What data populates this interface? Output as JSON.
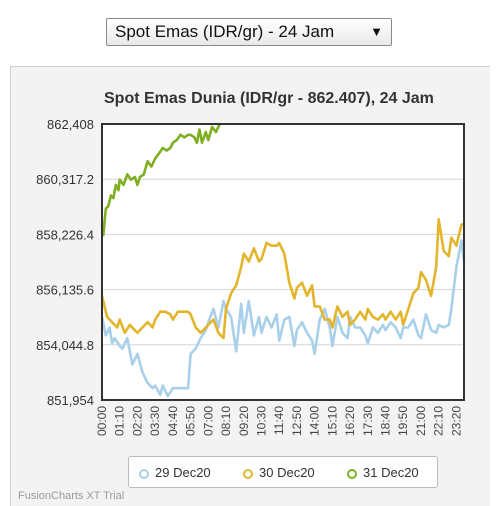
{
  "selector": {
    "value": "Spot Emas (IDR/gr) - 24 Jam"
  },
  "watermark": "FusionCharts XT Trial",
  "colors": {
    "s1": "#a9d0ea",
    "s2": "#e3b52c",
    "s3": "#7faf20"
  },
  "chart_data": {
    "type": "line",
    "title": "Spot Emas Dunia (IDR/gr - 862.407), 24 Jam",
    "xlabel": "",
    "ylabel": "",
    "ylim": [
      851954,
      862408
    ],
    "yticks": [
      "862,408",
      "860,317.2",
      "858,226.4",
      "856,135.6",
      "854,044.8",
      "851,954"
    ],
    "xticks": [
      "00:00",
      "01:10",
      "02:20",
      "03:30",
      "04:40",
      "05:50",
      "07:00",
      "08:10",
      "09:20",
      "10:30",
      "11:40",
      "12:50",
      "14:00",
      "15:10",
      "16:20",
      "17:30",
      "18:40",
      "19:50",
      "21:00",
      "22:10",
      "23:20"
    ],
    "grid": true,
    "legend_position": "bottom",
    "series": [
      {
        "name": "29 Dec20",
        "color": "#a9d0ea",
        "points": [
          [
            "00:00",
            855100
          ],
          [
            "00:15",
            854400
          ],
          [
            "00:30",
            854700
          ],
          [
            "00:40",
            854100
          ],
          [
            "00:50",
            854300
          ],
          [
            "01:10",
            854000
          ],
          [
            "01:20",
            853900
          ],
          [
            "01:40",
            854300
          ],
          [
            "02:00",
            853300
          ],
          [
            "02:20",
            853700
          ],
          [
            "02:40",
            853000
          ],
          [
            "03:00",
            852600
          ],
          [
            "03:20",
            852400
          ],
          [
            "03:30",
            852500
          ],
          [
            "03:50",
            852150
          ],
          [
            "04:00",
            852500
          ],
          [
            "04:20",
            852100
          ],
          [
            "04:40",
            852400
          ],
          [
            "05:00",
            852400
          ],
          [
            "05:20",
            852400
          ],
          [
            "05:40",
            852400
          ],
          [
            "05:50",
            853700
          ],
          [
            "06:10",
            853900
          ],
          [
            "06:30",
            854300
          ],
          [
            "06:50",
            854600
          ],
          [
            "07:00",
            854900
          ],
          [
            "07:20",
            855400
          ],
          [
            "07:40",
            854700
          ],
          [
            "08:00",
            855700
          ],
          [
            "08:10",
            855400
          ],
          [
            "08:30",
            855100
          ],
          [
            "08:50",
            853800
          ],
          [
            "09:10",
            855600
          ],
          [
            "09:20",
            854500
          ],
          [
            "09:40",
            855700
          ],
          [
            "10:00",
            854400
          ],
          [
            "10:20",
            855100
          ],
          [
            "10:30",
            854500
          ],
          [
            "10:50",
            855100
          ],
          [
            "11:10",
            854700
          ],
          [
            "11:30",
            855200
          ],
          [
            "11:40",
            854200
          ],
          [
            "12:00",
            855000
          ],
          [
            "12:20",
            855100
          ],
          [
            "12:40",
            854000
          ],
          [
            "12:50",
            854600
          ],
          [
            "13:10",
            854900
          ],
          [
            "13:30",
            854500
          ],
          [
            "13:50",
            854200
          ],
          [
            "14:00",
            853700
          ],
          [
            "14:20",
            855000
          ],
          [
            "14:40",
            855400
          ],
          [
            "15:00",
            854700
          ],
          [
            "15:10",
            854000
          ],
          [
            "15:30",
            855100
          ],
          [
            "15:50",
            854500
          ],
          [
            "16:10",
            854300
          ],
          [
            "16:20",
            855100
          ],
          [
            "16:40",
            854700
          ],
          [
            "17:00",
            854700
          ],
          [
            "17:20",
            854400
          ],
          [
            "17:30",
            854100
          ],
          [
            "17:50",
            854700
          ],
          [
            "18:10",
            854500
          ],
          [
            "18:30",
            854800
          ],
          [
            "18:40",
            854600
          ],
          [
            "19:00",
            854900
          ],
          [
            "19:20",
            854700
          ],
          [
            "19:40",
            854300
          ],
          [
            "19:50",
            854700
          ],
          [
            "20:10",
            854700
          ],
          [
            "20:30",
            855000
          ],
          [
            "20:50",
            854400
          ],
          [
            "21:00",
            854300
          ],
          [
            "21:20",
            855200
          ],
          [
            "21:40",
            854600
          ],
          [
            "22:00",
            854500
          ],
          [
            "22:10",
            854800
          ],
          [
            "22:30",
            854700
          ],
          [
            "22:50",
            854800
          ],
          [
            "23:00",
            855400
          ],
          [
            "23:20",
            857000
          ],
          [
            "23:40",
            858000
          ],
          [
            "23:50",
            857200
          ]
        ]
      },
      {
        "name": "30 Dec20",
        "color": "#e3b52c",
        "points": [
          [
            "00:00",
            855900
          ],
          [
            "00:20",
            855100
          ],
          [
            "00:40",
            854900
          ],
          [
            "01:00",
            854700
          ],
          [
            "01:10",
            855000
          ],
          [
            "01:30",
            854500
          ],
          [
            "01:50",
            854800
          ],
          [
            "02:20",
            854500
          ],
          [
            "02:40",
            854700
          ],
          [
            "03:00",
            854900
          ],
          [
            "03:20",
            854700
          ],
          [
            "03:30",
            855000
          ],
          [
            "03:50",
            855300
          ],
          [
            "04:10",
            855300
          ],
          [
            "04:30",
            855200
          ],
          [
            "04:40",
            855000
          ],
          [
            "05:00",
            855300
          ],
          [
            "05:20",
            855300
          ],
          [
            "05:40",
            855300
          ],
          [
            "05:50",
            855200
          ],
          [
            "06:10",
            854700
          ],
          [
            "06:30",
            854500
          ],
          [
            "06:50",
            854700
          ],
          [
            "07:00",
            854800
          ],
          [
            "07:20",
            855000
          ],
          [
            "07:40",
            854500
          ],
          [
            "08:00",
            854300
          ],
          [
            "08:10",
            855400
          ],
          [
            "08:30",
            856000
          ],
          [
            "08:50",
            856300
          ],
          [
            "09:10",
            857000
          ],
          [
            "09:20",
            857500
          ],
          [
            "09:40",
            857200
          ],
          [
            "10:00",
            857700
          ],
          [
            "10:20",
            857200
          ],
          [
            "10:30",
            857300
          ],
          [
            "10:50",
            857900
          ],
          [
            "11:10",
            857800
          ],
          [
            "11:30",
            857800
          ],
          [
            "11:40",
            857900
          ],
          [
            "12:00",
            857500
          ],
          [
            "12:20",
            856400
          ],
          [
            "12:40",
            855800
          ],
          [
            "12:50",
            856200
          ],
          [
            "13:10",
            856400
          ],
          [
            "13:30",
            855900
          ],
          [
            "13:50",
            856300
          ],
          [
            "14:00",
            855500
          ],
          [
            "14:20",
            855500
          ],
          [
            "14:40",
            855000
          ],
          [
            "15:00",
            855000
          ],
          [
            "15:10",
            854700
          ],
          [
            "15:30",
            855500
          ],
          [
            "15:50",
            855100
          ],
          [
            "16:10",
            855300
          ],
          [
            "16:20",
            854800
          ],
          [
            "16:40",
            855000
          ],
          [
            "17:00",
            855300
          ],
          [
            "17:20",
            855000
          ],
          [
            "17:30",
            855400
          ],
          [
            "17:50",
            855100
          ],
          [
            "18:10",
            855000
          ],
          [
            "18:30",
            855200
          ],
          [
            "18:40",
            855000
          ],
          [
            "19:00",
            855300
          ],
          [
            "19:20",
            855000
          ],
          [
            "19:40",
            855300
          ],
          [
            "19:50",
            854800
          ],
          [
            "20:10",
            855400
          ],
          [
            "20:30",
            856000
          ],
          [
            "20:50",
            856200
          ],
          [
            "21:00",
            856800
          ],
          [
            "21:20",
            856500
          ],
          [
            "21:40",
            855900
          ],
          [
            "22:00",
            857000
          ],
          [
            "22:10",
            858800
          ],
          [
            "22:30",
            857600
          ],
          [
            "22:50",
            857400
          ],
          [
            "23:00",
            858100
          ],
          [
            "23:20",
            857800
          ],
          [
            "23:40",
            858600
          ],
          [
            "23:50",
            858600
          ]
        ]
      },
      {
        "name": "31 Dec20",
        "color": "#7faf20",
        "points": [
          [
            "00:00",
            858600
          ],
          [
            "00:05",
            858200
          ],
          [
            "00:15",
            859200
          ],
          [
            "00:25",
            859300
          ],
          [
            "00:35",
            859700
          ],
          [
            "00:45",
            859600
          ],
          [
            "00:55",
            860100
          ],
          [
            "01:05",
            859900
          ],
          [
            "01:10",
            860300
          ],
          [
            "01:25",
            860100
          ],
          [
            "01:40",
            860500
          ],
          [
            "01:55",
            860300
          ],
          [
            "02:10",
            860400
          ],
          [
            "02:20",
            860100
          ],
          [
            "02:30",
            860400
          ],
          [
            "02:45",
            860500
          ],
          [
            "03:00",
            861000
          ],
          [
            "03:15",
            860800
          ],
          [
            "03:30",
            861100
          ],
          [
            "03:45",
            861300
          ],
          [
            "04:00",
            861500
          ],
          [
            "04:15",
            861400
          ],
          [
            "04:30",
            861500
          ],
          [
            "04:40",
            861700
          ],
          [
            "04:55",
            861800
          ],
          [
            "05:10",
            862000
          ],
          [
            "05:25",
            861900
          ],
          [
            "05:40",
            862000
          ],
          [
            "05:50",
            862000
          ],
          [
            "06:05",
            861900
          ],
          [
            "06:15",
            861700
          ],
          [
            "06:25",
            862200
          ],
          [
            "06:35",
            861700
          ],
          [
            "06:50",
            862100
          ],
          [
            "07:00",
            861800
          ],
          [
            "07:15",
            862300
          ],
          [
            "07:30",
            862100
          ],
          [
            "07:45",
            862400
          ]
        ]
      }
    ]
  }
}
